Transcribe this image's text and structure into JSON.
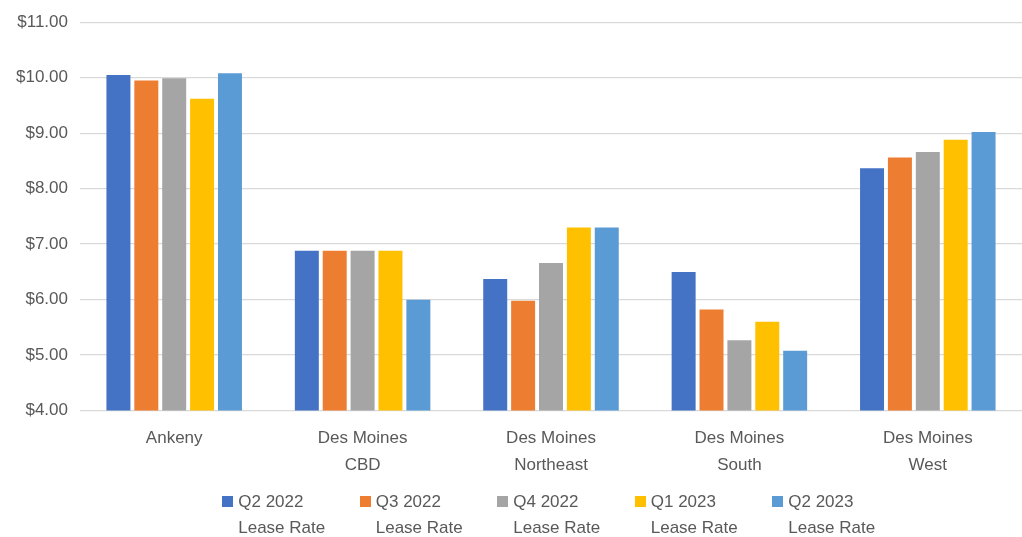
{
  "chart_data": {
    "type": "bar",
    "categories": [
      "Ankeny",
      "Des Moines CBD",
      "Des Moines Northeast",
      "Des Moines South",
      "Des Moines West"
    ],
    "series": [
      {
        "name": "Q2 2022 Lease Rate",
        "color": "#4472c4",
        "values": [
          10.05,
          6.88,
          6.37,
          6.5,
          8.37
        ]
      },
      {
        "name": "Q3 2022 Lease Rate",
        "color": "#ed7d31",
        "values": [
          9.95,
          6.88,
          5.98,
          5.82,
          8.56
        ]
      },
      {
        "name": "Q4 2022 Lease Rate",
        "color": "#a5a5a5",
        "values": [
          9.99,
          6.88,
          6.66,
          5.27,
          8.66
        ]
      },
      {
        "name": "Q1 2023 Lease Rate",
        "color": "#ffc000",
        "values": [
          9.62,
          6.88,
          7.3,
          5.6,
          8.88
        ]
      },
      {
        "name": "Q2 2023 Lease Rate",
        "color": "#5b9bd5",
        "values": [
          10.08,
          6.0,
          7.3,
          5.08,
          9.02
        ]
      }
    ],
    "ylim": [
      4,
      11
    ],
    "yticks": [
      {
        "value": 4,
        "label": "$4.00"
      },
      {
        "value": 5,
        "label": "$5.00"
      },
      {
        "value": 6,
        "label": "$6.00"
      },
      {
        "value": 7,
        "label": "$7.00"
      },
      {
        "value": 8,
        "label": "$8.00"
      },
      {
        "value": 9,
        "label": "$9.00"
      },
      {
        "value": 10,
        "label": "$10.00"
      },
      {
        "value": 11,
        "label": "$11.00"
      }
    ],
    "grid": "y",
    "legend": "bottom"
  }
}
